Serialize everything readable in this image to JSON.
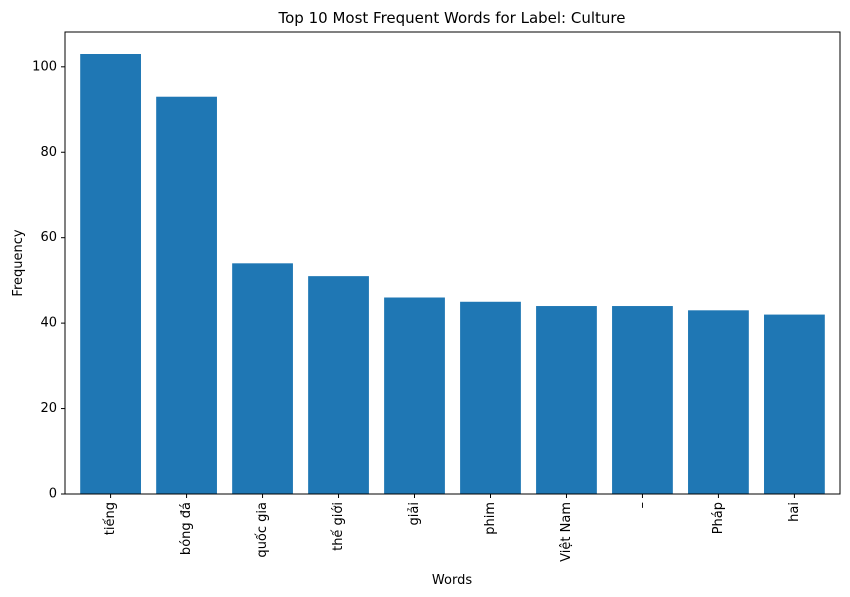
{
  "chart_data": {
    "type": "bar",
    "title": "Top 10 Most Frequent Words for Label: Culture",
    "xlabel": "Words",
    "ylabel": "Frequency",
    "categories": [
      "tiếng",
      "bóng đá",
      "quốc gia",
      "thế giới",
      "giải",
      "phim",
      "Việt Nam",
      "–",
      "Pháp",
      "hai"
    ],
    "values": [
      103,
      93,
      54,
      51,
      46,
      45,
      44,
      44,
      43,
      42
    ],
    "ylim": [
      0,
      108.15
    ],
    "yticks": [
      0,
      20,
      40,
      60,
      80,
      100
    ],
    "bar_color": "#1f77b4",
    "grid": false,
    "legend": false
  }
}
